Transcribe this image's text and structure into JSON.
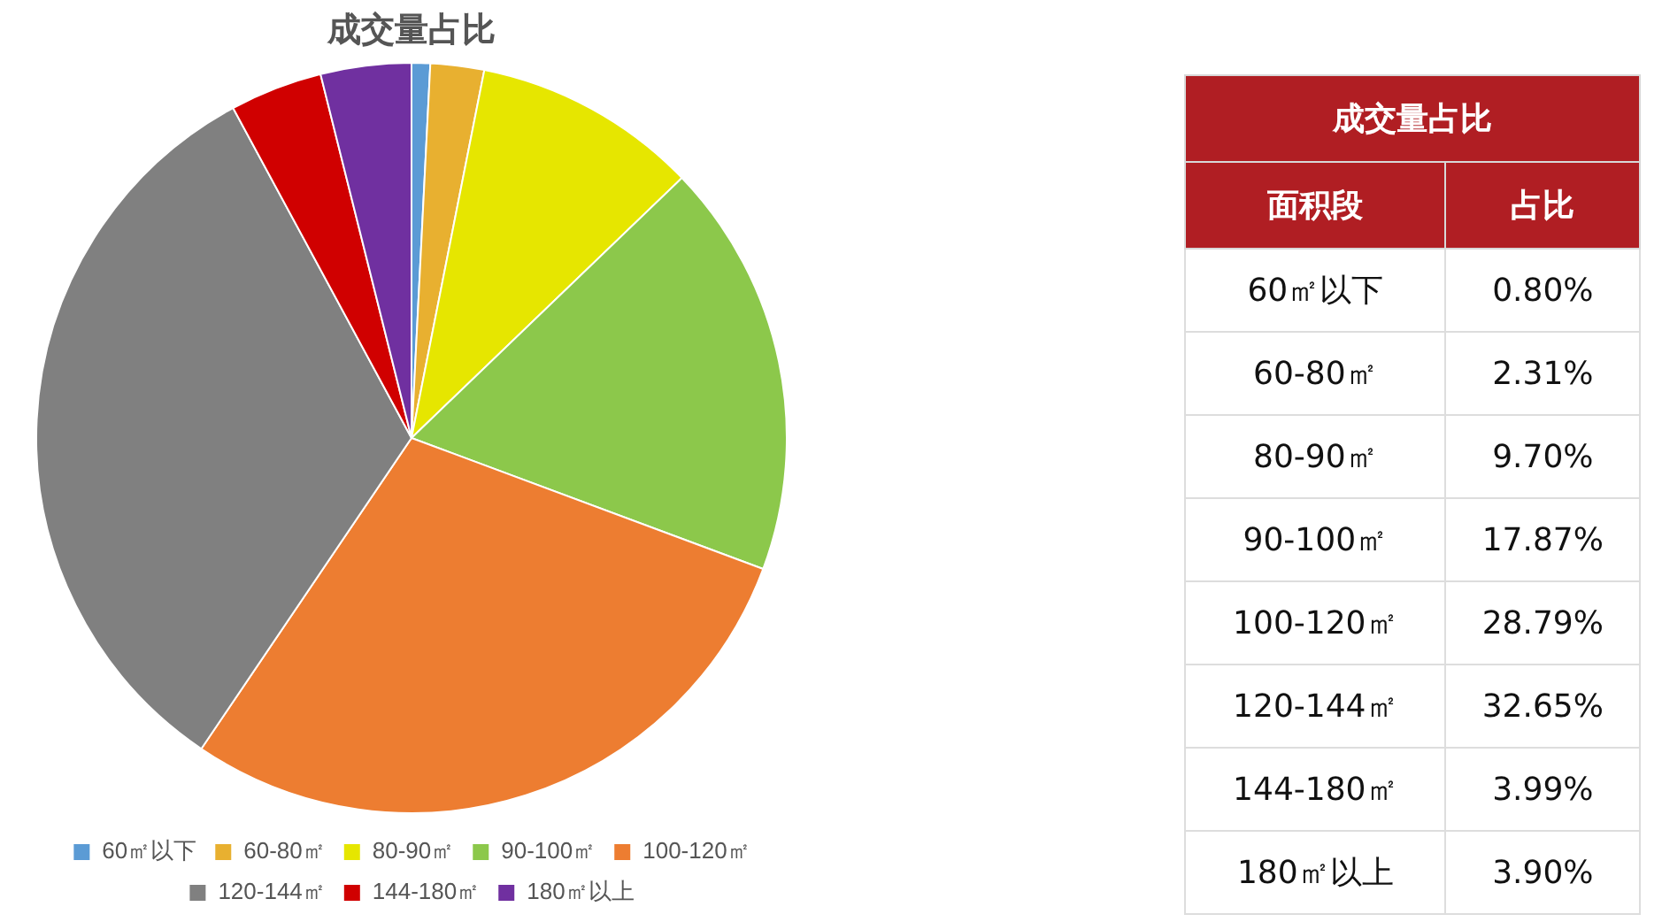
{
  "chart_data": [
    {
      "type": "pie",
      "title": "成交量占比",
      "categories": [
        "60㎡以下",
        "60-80㎡",
        "80-90㎡",
        "90-100㎡",
        "100-120㎡",
        "120-144㎡",
        "144-180㎡",
        "180㎡以上"
      ],
      "values": [
        0.8,
        2.31,
        9.7,
        17.87,
        28.79,
        32.65,
        3.99,
        3.9
      ],
      "colors": [
        "#5b9bd5",
        "#e8b030",
        "#e6e600",
        "#8cc84b",
        "#ed7d31",
        "#808080",
        "#d00000",
        "#7030a0"
      ],
      "legend": "bottom"
    },
    {
      "type": "other",
      "title": "成交量占比",
      "annotations": [
        "面积段",
        "占比",
        "60㎡以下",
        "0.80%",
        "60-80㎡",
        "2.31%",
        "80-90㎡",
        "9.70%",
        "90-100㎡",
        "17.87%",
        "100-120㎡",
        "28.79%",
        "120-144㎡",
        "32.65%",
        "144-180㎡",
        "3.99%",
        "180㎡以上",
        "3.90%"
      ]
    }
  ]
}
